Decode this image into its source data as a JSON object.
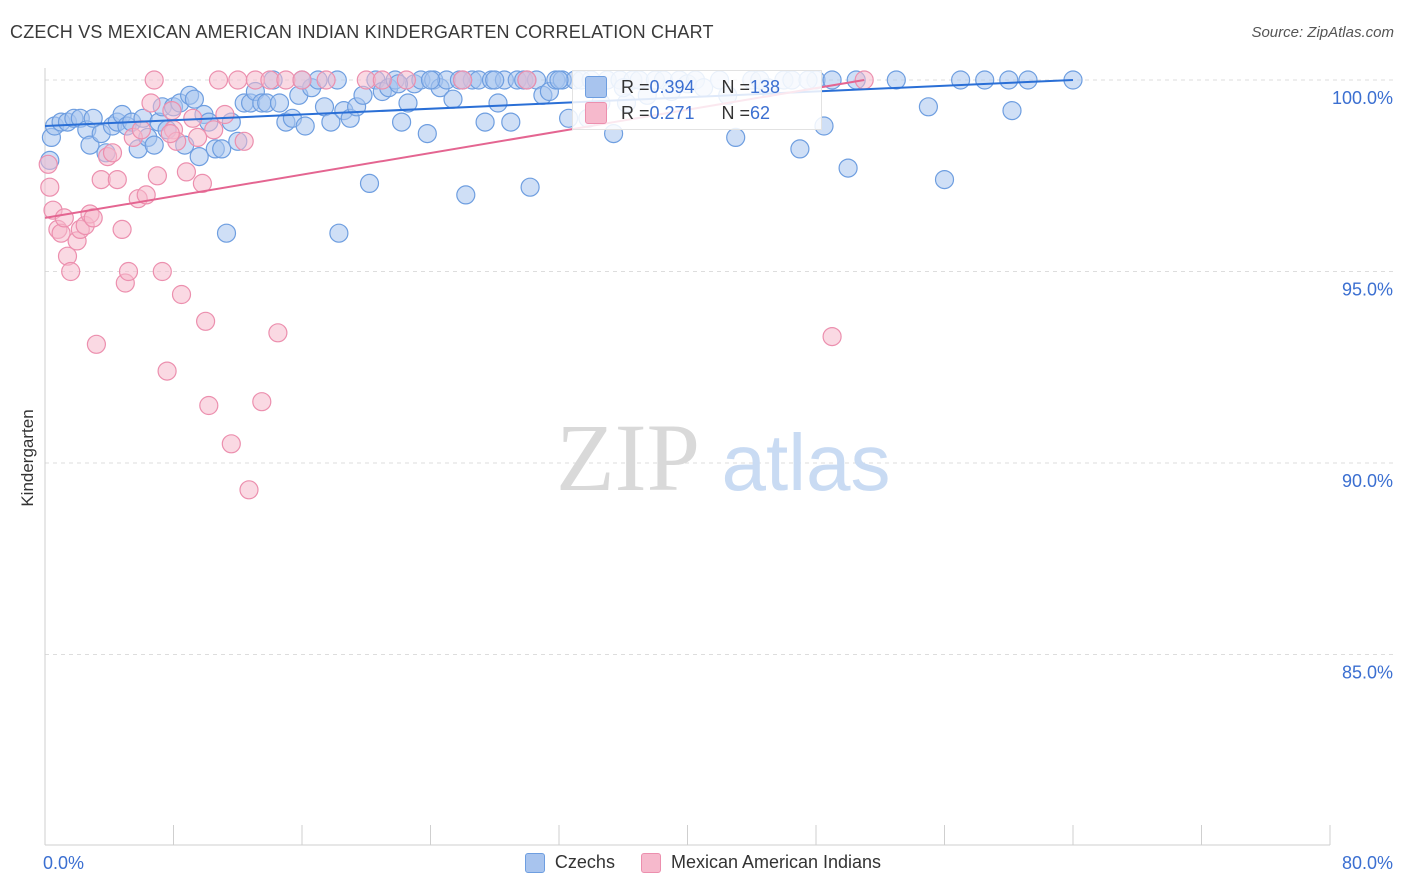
{
  "title": "CZECH VS MEXICAN AMERICAN INDIAN KINDERGARTEN CORRELATION CHART",
  "source": "Source: ZipAtlas.com",
  "watermark": {
    "zip": "ZIP",
    "atlas": "atlas"
  },
  "colors": {
    "czechs_fill": "#a8c4ee",
    "czechs_stroke": "#6e9ee0",
    "czechs_line": "#2a6fd6",
    "mex_fill": "#f6b9cc",
    "mex_stroke": "#ec8fae",
    "mex_line": "#e46591",
    "axis_text": "#3b6fd1",
    "grid": "#dddddd"
  },
  "stats": {
    "czechs": {
      "r_label": "R = ",
      "r_value": "0.394",
      "n_label": "N = ",
      "n_value": "138"
    },
    "mex": {
      "r_label": "R = ",
      "r_value": "0.271",
      "n_label": "N = ",
      "n_value": "62"
    }
  },
  "legend": {
    "czechs": "Czechs",
    "mex": "Mexican American Indians"
  },
  "chart_data": {
    "type": "scatter",
    "title": "CZECH VS MEXICAN AMERICAN INDIAN KINDERGARTEN CORRELATION CHART",
    "xlabel": "",
    "ylabel": "Kindergarten",
    "xlim": [
      0,
      80
    ],
    "ylim": [
      80,
      100.5
    ],
    "x_tick_labels": [
      "0.0%",
      "80.0%"
    ],
    "y_ticks": [
      85,
      90,
      95,
      100
    ],
    "y_tick_labels": [
      "85.0%",
      "90.0%",
      "95.0%",
      "100.0%"
    ],
    "legend_position": "bottom",
    "series": [
      {
        "name": "Czechs",
        "r": 0.394,
        "n": 138,
        "trend": [
          [
            0,
            98.8
          ],
          [
            64,
            100.0
          ]
        ],
        "points": [
          [
            0.3,
            97.9
          ],
          [
            0.4,
            98.5
          ],
          [
            0.6,
            98.8
          ],
          [
            1.0,
            98.9
          ],
          [
            1.4,
            98.9
          ],
          [
            1.8,
            99.0
          ],
          [
            2.2,
            99.0
          ],
          [
            2.6,
            98.7
          ],
          [
            2.8,
            98.3
          ],
          [
            3.0,
            99.0
          ],
          [
            3.5,
            98.6
          ],
          [
            3.8,
            98.1
          ],
          [
            4.2,
            98.8
          ],
          [
            4.5,
            98.9
          ],
          [
            4.8,
            99.1
          ],
          [
            5.1,
            98.8
          ],
          [
            5.4,
            98.9
          ],
          [
            5.8,
            98.2
          ],
          [
            6.1,
            99.0
          ],
          [
            6.4,
            98.5
          ],
          [
            6.8,
            98.3
          ],
          [
            7.1,
            98.9
          ],
          [
            7.3,
            99.3
          ],
          [
            7.6,
            98.7
          ],
          [
            8.0,
            99.3
          ],
          [
            8.4,
            99.4
          ],
          [
            8.7,
            98.3
          ],
          [
            9.0,
            99.6
          ],
          [
            9.3,
            99.5
          ],
          [
            9.6,
            98.0
          ],
          [
            9.9,
            99.1
          ],
          [
            10.2,
            98.9
          ],
          [
            10.6,
            98.2
          ],
          [
            11.0,
            98.2
          ],
          [
            11.3,
            96.0
          ],
          [
            11.6,
            98.9
          ],
          [
            12.0,
            98.4
          ],
          [
            12.4,
            99.4
          ],
          [
            12.8,
            99.4
          ],
          [
            13.1,
            99.7
          ],
          [
            13.5,
            99.4
          ],
          [
            13.8,
            99.4
          ],
          [
            14.2,
            100.0
          ],
          [
            14.6,
            99.4
          ],
          [
            15.0,
            98.9
          ],
          [
            15.4,
            99.0
          ],
          [
            15.8,
            99.6
          ],
          [
            16.2,
            98.8
          ],
          [
            16.6,
            99.8
          ],
          [
            17.0,
            100.0
          ],
          [
            17.4,
            99.3
          ],
          [
            17.8,
            98.9
          ],
          [
            18.2,
            100.0
          ],
          [
            18.6,
            99.2
          ],
          [
            19.0,
            99.0
          ],
          [
            19.4,
            99.3
          ],
          [
            19.8,
            99.6
          ],
          [
            20.2,
            97.3
          ],
          [
            20.6,
            100.0
          ],
          [
            21.0,
            99.7
          ],
          [
            21.4,
            99.8
          ],
          [
            21.8,
            100.0
          ],
          [
            22.2,
            98.9
          ],
          [
            22.6,
            99.4
          ],
          [
            23.0,
            99.9
          ],
          [
            23.4,
            100.0
          ],
          [
            23.8,
            98.6
          ],
          [
            24.2,
            100.0
          ],
          [
            24.6,
            99.8
          ],
          [
            25.0,
            100.0
          ],
          [
            25.4,
            99.5
          ],
          [
            25.8,
            100.0
          ],
          [
            26.2,
            97.0
          ],
          [
            26.6,
            100.0
          ],
          [
            27.0,
            100.0
          ],
          [
            27.4,
            98.9
          ],
          [
            27.8,
            100.0
          ],
          [
            28.2,
            99.4
          ],
          [
            28.6,
            100.0
          ],
          [
            29.0,
            98.9
          ],
          [
            29.4,
            100.0
          ],
          [
            29.8,
            100.0
          ],
          [
            30.2,
            97.2
          ],
          [
            30.6,
            100.0
          ],
          [
            31.0,
            99.6
          ],
          [
            31.4,
            99.7
          ],
          [
            31.8,
            100.0
          ],
          [
            32.2,
            100.0
          ],
          [
            32.6,
            99.0
          ],
          [
            33.0,
            100.0
          ],
          [
            33.4,
            100.0
          ],
          [
            33.8,
            99.0
          ],
          [
            34.2,
            99.2
          ],
          [
            34.6,
            99.4
          ],
          [
            35.0,
            100.0
          ],
          [
            35.4,
            98.6
          ],
          [
            35.8,
            100.0
          ],
          [
            36.2,
            99.4
          ],
          [
            36.6,
            100.0
          ],
          [
            37.0,
            100.0
          ],
          [
            37.5,
            99.6
          ],
          [
            38.0,
            100.0
          ],
          [
            38.5,
            100.0
          ],
          [
            39.0,
            99.7
          ],
          [
            39.5,
            100.0
          ],
          [
            40.0,
            99.9
          ],
          [
            40.5,
            100.0
          ],
          [
            41.0,
            99.8
          ],
          [
            42.0,
            100.0
          ],
          [
            42.5,
            99.6
          ],
          [
            43.0,
            98.5
          ],
          [
            44.0,
            100.0
          ],
          [
            45.0,
            99.8
          ],
          [
            46.0,
            100.0
          ],
          [
            47.0,
            98.2
          ],
          [
            48.0,
            100.0
          ],
          [
            48.5,
            98.8
          ],
          [
            49.0,
            100.0
          ],
          [
            50.0,
            97.7
          ],
          [
            50.5,
            100.0
          ],
          [
            53.0,
            100.0
          ],
          [
            55.0,
            99.3
          ],
          [
            56.0,
            97.4
          ],
          [
            57.0,
            100.0
          ],
          [
            58.5,
            100.0
          ],
          [
            60.0,
            100.0
          ],
          [
            60.2,
            99.2
          ],
          [
            61.2,
            100.0
          ],
          [
            64.0,
            100.0
          ],
          [
            18.3,
            96.0
          ],
          [
            30.0,
            100.0
          ],
          [
            36.0,
            99.8
          ],
          [
            16.0,
            100.0
          ],
          [
            22.0,
            99.9
          ],
          [
            24.0,
            100.0
          ],
          [
            26.0,
            100.0
          ],
          [
            28.0,
            100.0
          ],
          [
            32.0,
            100.0
          ],
          [
            34.0,
            100.0
          ],
          [
            44.5,
            100.0
          ],
          [
            46.5,
            100.0
          ],
          [
            47.5,
            100.0
          ]
        ]
      },
      {
        "name": "Mexican American Indians",
        "r": 0.271,
        "n": 62,
        "trend": [
          [
            0,
            96.4
          ],
          [
            51,
            100.0
          ]
        ],
        "points": [
          [
            0.2,
            97.8
          ],
          [
            0.3,
            97.2
          ],
          [
            0.5,
            96.6
          ],
          [
            0.8,
            96.1
          ],
          [
            1.0,
            96.0
          ],
          [
            1.2,
            96.4
          ],
          [
            1.4,
            95.4
          ],
          [
            1.6,
            95.0
          ],
          [
            2.0,
            95.8
          ],
          [
            2.2,
            96.1
          ],
          [
            2.5,
            96.2
          ],
          [
            2.8,
            96.5
          ],
          [
            3.0,
            96.4
          ],
          [
            3.2,
            93.1
          ],
          [
            3.5,
            97.4
          ],
          [
            3.9,
            98.0
          ],
          [
            4.2,
            98.1
          ],
          [
            4.5,
            97.4
          ],
          [
            4.8,
            96.1
          ],
          [
            5.0,
            94.7
          ],
          [
            5.2,
            95.0
          ],
          [
            5.5,
            98.5
          ],
          [
            5.8,
            96.9
          ],
          [
            6.0,
            98.7
          ],
          [
            6.3,
            97.0
          ],
          [
            6.6,
            99.4
          ],
          [
            6.8,
            100.0
          ],
          [
            7.0,
            97.5
          ],
          [
            7.3,
            95.0
          ],
          [
            7.6,
            92.4
          ],
          [
            7.9,
            99.2
          ],
          [
            8.0,
            98.7
          ],
          [
            8.2,
            98.4
          ],
          [
            8.5,
            94.4
          ],
          [
            8.8,
            97.6
          ],
          [
            9.2,
            99.0
          ],
          [
            9.5,
            98.5
          ],
          [
            9.8,
            97.3
          ],
          [
            10.2,
            91.5
          ],
          [
            10.5,
            98.7
          ],
          [
            10.8,
            100.0
          ],
          [
            11.2,
            99.1
          ],
          [
            11.6,
            90.5
          ],
          [
            12.0,
            100.0
          ],
          [
            12.4,
            98.4
          ],
          [
            12.7,
            89.3
          ],
          [
            13.1,
            100.0
          ],
          [
            13.5,
            91.6
          ],
          [
            14.0,
            100.0
          ],
          [
            14.5,
            93.4
          ],
          [
            15.0,
            100.0
          ],
          [
            16.0,
            100.0
          ],
          [
            17.5,
            100.0
          ],
          [
            20.0,
            100.0
          ],
          [
            22.5,
            100.0
          ],
          [
            26.0,
            100.0
          ],
          [
            30.0,
            100.0
          ],
          [
            49.0,
            93.3
          ],
          [
            51.0,
            100.0
          ],
          [
            10.0,
            93.7
          ],
          [
            7.8,
            98.6
          ],
          [
            21.0,
            100.0
          ]
        ]
      }
    ]
  }
}
